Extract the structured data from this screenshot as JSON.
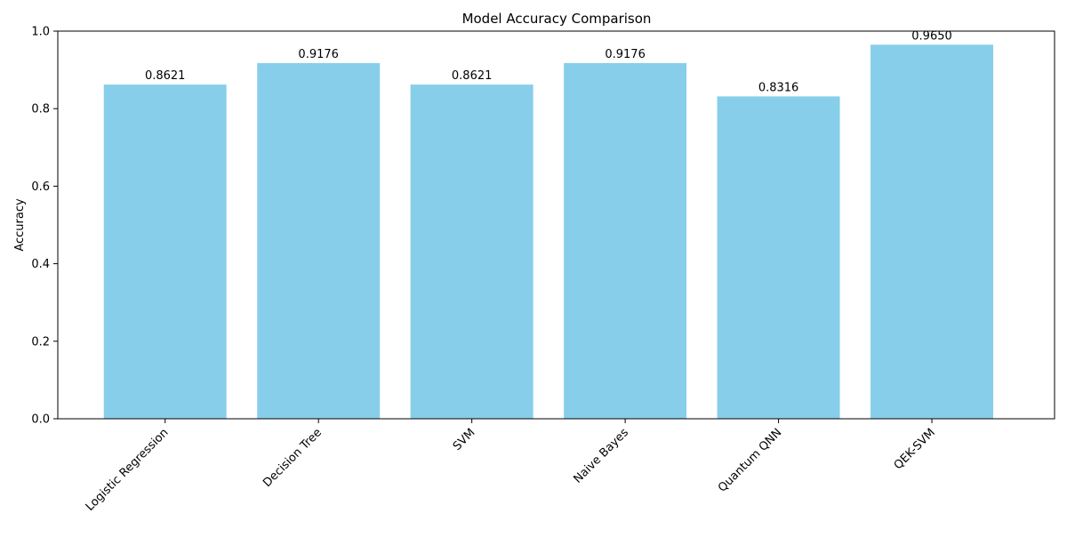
{
  "chart_data": {
    "type": "bar",
    "title": "Model Accuracy Comparison",
    "xlabel": "",
    "ylabel": "Accuracy",
    "categories": [
      "Logistic Regression",
      "Decision Tree",
      "SVM",
      "Naive Bayes",
      "Quantum QNN",
      "QEK-SVM"
    ],
    "values": [
      0.8621,
      0.9176,
      0.8621,
      0.9176,
      0.8316,
      0.965
    ],
    "data_labels": [
      "0.8621",
      "0.9176",
      "0.8621",
      "0.9176",
      "0.8316",
      "0.9650"
    ],
    "ylim": [
      0,
      1.0
    ],
    "yticks": [
      0.0,
      0.2,
      0.4,
      0.6,
      0.8,
      1.0
    ],
    "ytick_labels": [
      "0.0",
      "0.2",
      "0.4",
      "0.6",
      "0.8",
      "1.0"
    ],
    "xtick_rotation_deg": 45,
    "bar_color": "#87CEEB",
    "grid": false,
    "legend": "none"
  }
}
